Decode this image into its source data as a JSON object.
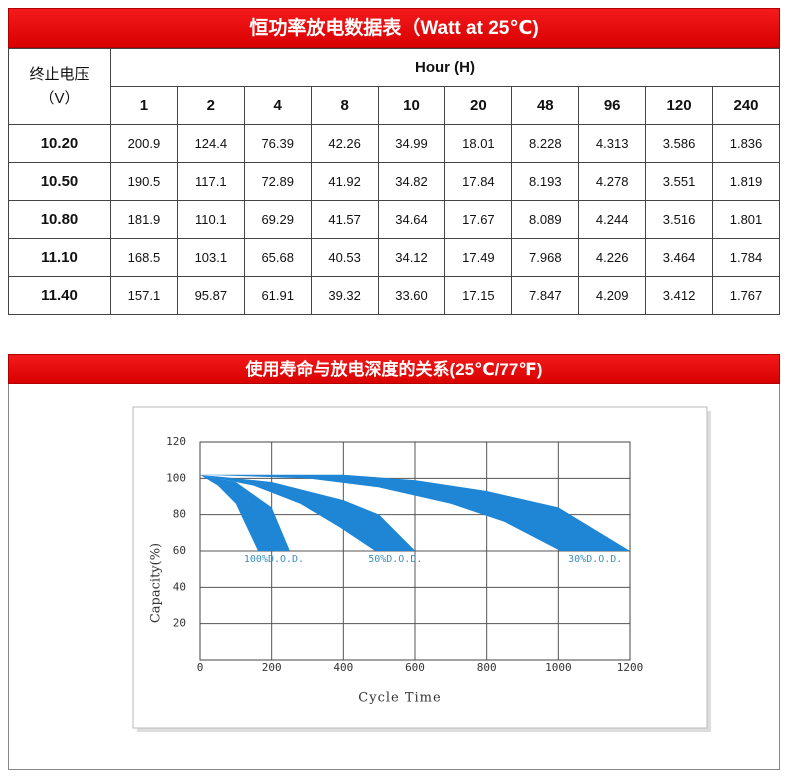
{
  "table": {
    "title": "恒功率放电数据表（Watt at 25℃)",
    "corner_header": "终止电压\n（V）",
    "group_header": "Hour (H)",
    "hours": [
      "1",
      "2",
      "4",
      "8",
      "10",
      "20",
      "48",
      "96",
      "120",
      "240"
    ],
    "rows": [
      [
        "10.20",
        "200.9",
        "124.4",
        "76.39",
        "42.26",
        "34.99",
        "18.01",
        "8.228",
        "4.313",
        "3.586",
        "1.836"
      ],
      [
        "10.50",
        "190.5",
        "117.1",
        "72.89",
        "41.92",
        "34.82",
        "17.84",
        "8.193",
        "4.278",
        "3.551",
        "1.819"
      ],
      [
        "10.80",
        "181.9",
        "110.1",
        "69.29",
        "41.57",
        "34.64",
        "17.67",
        "8.089",
        "4.244",
        "3.516",
        "1.801"
      ],
      [
        "11.10",
        "168.5",
        "103.1",
        "65.68",
        "40.53",
        "34.12",
        "17.49",
        "7.968",
        "4.226",
        "3.464",
        "1.784"
      ],
      [
        "11.40",
        "157.1",
        "95.87",
        "61.91",
        "39.32",
        "33.60",
        "17.15",
        "7.847",
        "4.209",
        "3.412",
        "1.767"
      ]
    ]
  },
  "chart_data": {
    "type": "band",
    "title": "使用寿命与放电深度的关系(25℃/77℉)",
    "x_label": "Cycle Time",
    "y_label": "Capacity(%)",
    "xlim": [
      0,
      1200
    ],
    "xticks": [
      0,
      200,
      400,
      600,
      800,
      1000,
      1200
    ],
    "ylim": [
      0,
      120
    ],
    "yticks": [
      20,
      40,
      60,
      80,
      100,
      120
    ],
    "grid": true,
    "series": [
      {
        "name": "100%D.O.D.",
        "color": "#1f86d6",
        "upper": {
          "x": [
            0,
            100,
            200,
            251
          ],
          "y": [
            102,
            98,
            84,
            60
          ]
        },
        "lower": {
          "x": [
            0,
            50,
            100,
            162
          ],
          "y": [
            102,
            96,
            86,
            60
          ]
        }
      },
      {
        "name": "50%D.O.D.",
        "color": "#1f86d6",
        "upper": {
          "x": [
            0,
            200,
            400,
            500,
            601
          ],
          "y": [
            102,
            98,
            88,
            80,
            60
          ]
        },
        "lower": {
          "x": [
            0,
            150,
            280,
            390,
            489
          ],
          "y": [
            102,
            96,
            86,
            73,
            60
          ]
        }
      },
      {
        "name": "30%D.O.D.",
        "color": "#1f86d6",
        "upper": {
          "x": [
            0,
            400,
            600,
            800,
            1000,
            1200
          ],
          "y": [
            102,
            102,
            99,
            93,
            84,
            60
          ]
        },
        "lower": {
          "x": [
            0,
            300,
            500,
            700,
            850,
            1006
          ],
          "y": [
            102,
            100,
            95,
            86,
            76,
            60
          ]
        }
      }
    ]
  }
}
